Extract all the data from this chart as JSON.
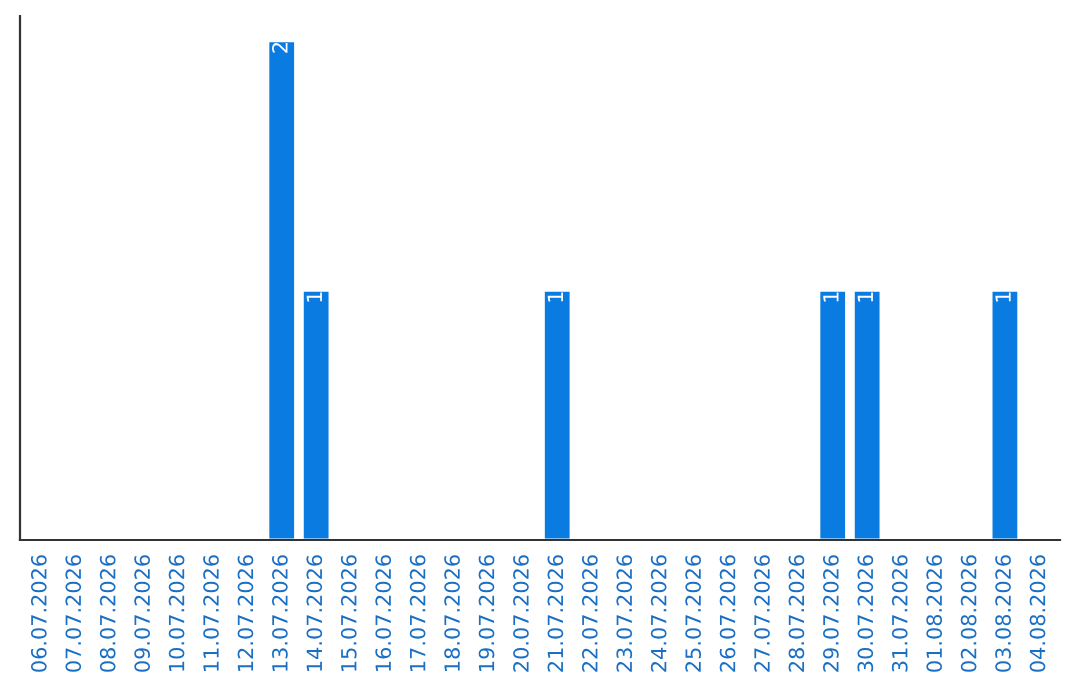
{
  "chart_data": {
    "type": "bar",
    "categories": [
      "06.07.2026",
      "07.07.2026",
      "08.07.2026",
      "09.07.2026",
      "10.07.2026",
      "11.07.2026",
      "12.07.2026",
      "13.07.2026",
      "14.07.2026",
      "15.07.2026",
      "16.07.2026",
      "17.07.2026",
      "18.07.2026",
      "19.07.2026",
      "20.07.2026",
      "21.07.2026",
      "22.07.2026",
      "23.07.2026",
      "24.07.2026",
      "25.07.2026",
      "26.07.2026",
      "27.07.2026",
      "28.07.2026",
      "29.07.2026",
      "30.07.2026",
      "31.07.2026",
      "01.08.2026",
      "02.08.2026",
      "03.08.2026",
      "04.08.2026"
    ],
    "values": [
      null,
      null,
      null,
      null,
      null,
      null,
      null,
      2,
      1,
      null,
      null,
      null,
      null,
      null,
      null,
      1,
      null,
      null,
      null,
      null,
      null,
      null,
      null,
      1,
      1,
      null,
      null,
      null,
      1,
      null
    ],
    "value_labels": [
      null,
      null,
      null,
      null,
      null,
      null,
      null,
      "2",
      "1",
      null,
      null,
      null,
      null,
      null,
      null,
      "1",
      null,
      null,
      null,
      null,
      null,
      null,
      null,
      "1",
      "1",
      null,
      null,
      null,
      "1",
      null
    ],
    "color": "#0a7be0",
    "grid": false,
    "legend": false
  }
}
